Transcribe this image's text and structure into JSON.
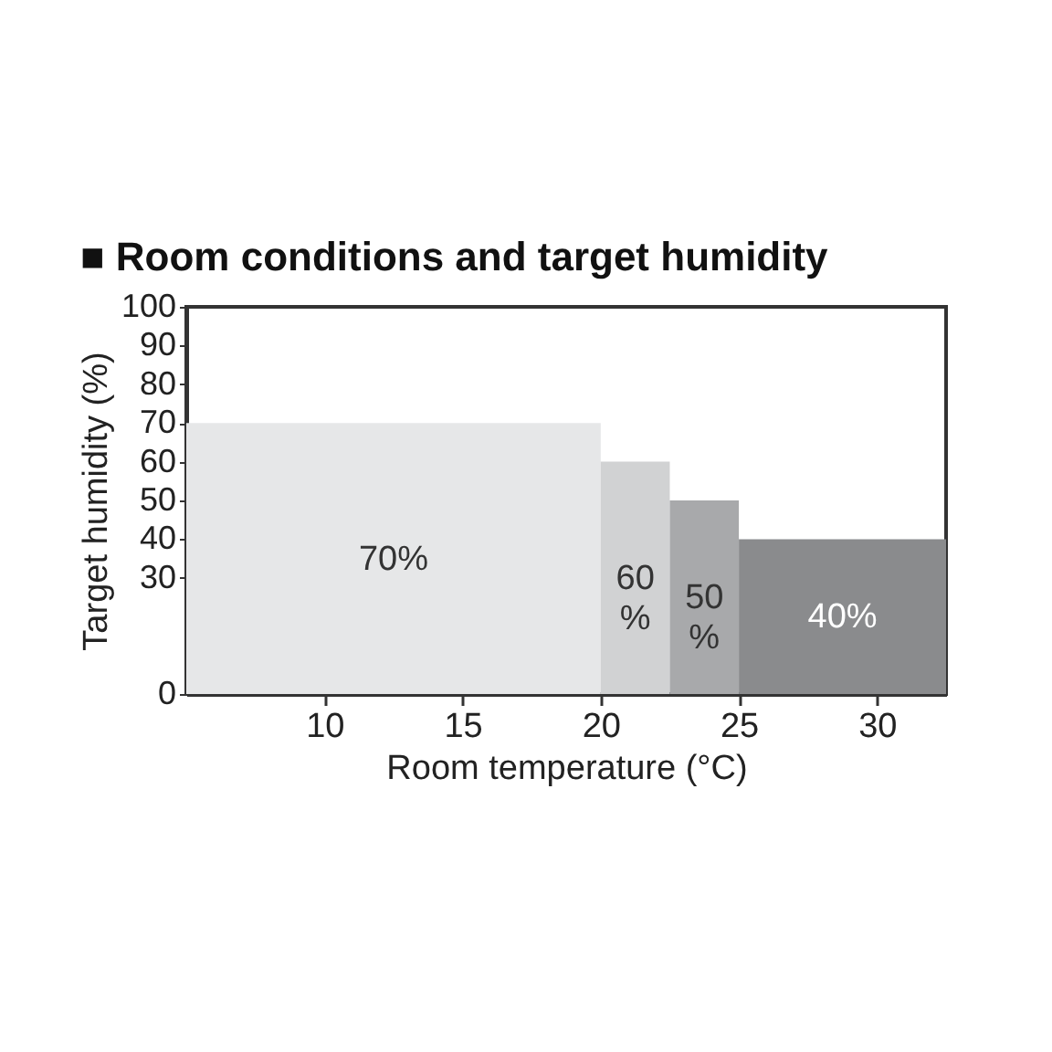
{
  "chart_data": {
    "type": "histogram",
    "title": "■ Room conditions and target humidity",
    "xlabel": "Room temperature (°C)",
    "ylabel": "Target humidity (%)",
    "bins": [
      5,
      20,
      22.5,
      25,
      32.5
    ],
    "values": [
      70,
      60,
      50,
      40
    ],
    "colors": [
      "#e6e7e8",
      "#d1d2d3",
      "#a8a9ab",
      "#8a8b8d"
    ],
    "value_labels": [
      "70%",
      "60\n%",
      "50\n%",
      "40%"
    ],
    "xlim": [
      5,
      32.5
    ],
    "xticks": [
      10,
      15,
      20,
      25,
      30
    ],
    "ylim": [
      0,
      100
    ],
    "yticks": [
      0,
      30,
      40,
      50,
      60,
      70,
      80,
      90,
      100
    ],
    "grid": false
  }
}
